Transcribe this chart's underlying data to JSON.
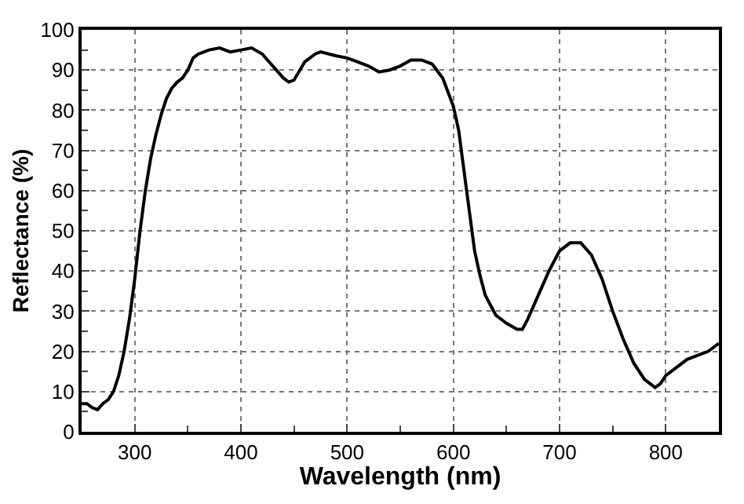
{
  "chart_data": {
    "type": "line",
    "xlabel": "Wavelength (nm)",
    "ylabel": "Reflectance (%)",
    "x": [
      250,
      255,
      260,
      265,
      270,
      275,
      280,
      285,
      290,
      295,
      300,
      305,
      310,
      315,
      320,
      325,
      330,
      335,
      340,
      345,
      350,
      355,
      360,
      370,
      380,
      390,
      400,
      410,
      420,
      430,
      440,
      445,
      450,
      460,
      470,
      475,
      490,
      500,
      510,
      520,
      530,
      540,
      550,
      560,
      570,
      580,
      590,
      600,
      605,
      610,
      615,
      620,
      625,
      630,
      640,
      650,
      660,
      665,
      670,
      680,
      690,
      700,
      710,
      720,
      730,
      740,
      750,
      760,
      770,
      780,
      790,
      795,
      800,
      810,
      820,
      830,
      840,
      850
    ],
    "series": [
      {
        "color": "#000000",
        "values": [
          7,
          7,
          6,
          5.5,
          7,
          8,
          10,
          14,
          20,
          28,
          38,
          50,
          60,
          68,
          74,
          79,
          83,
          85.5,
          87,
          88,
          90,
          93,
          94,
          95,
          95.5,
          94.5,
          95,
          95.5,
          94,
          91,
          88,
          87,
          87.5,
          92,
          94,
          94.5,
          93.5,
          93,
          92,
          91,
          89.5,
          90,
          91,
          92.5,
          92.5,
          91.5,
          88,
          81,
          75,
          65,
          55,
          45,
          39,
          34,
          29,
          27,
          25.5,
          25.5,
          28,
          34,
          40,
          45,
          47,
          47,
          44,
          38,
          30,
          23,
          17,
          13,
          11,
          12,
          14,
          16,
          18,
          19,
          20,
          22
        ]
      }
    ],
    "xlim": [
      250,
      850
    ],
    "xticks": [
      300,
      400,
      500,
      600,
      700,
      800
    ],
    "ylim": [
      0,
      100
    ],
    "yticks": [
      0,
      10,
      20,
      30,
      40,
      50,
      60,
      70,
      80,
      90,
      100
    ],
    "grid": true,
    "line_style": "solid",
    "marker": "none",
    "legend": false
  }
}
